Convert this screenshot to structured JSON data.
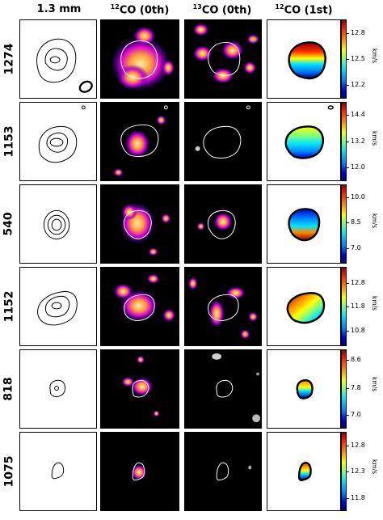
{
  "columns": {
    "continuum": "1.3 mm",
    "co12_zeroth": {
      "sup": "12",
      "text": "CO (0th)"
    },
    "co13_zeroth": {
      "sup": "13",
      "text": "CO (0th)"
    },
    "co12_first": {
      "sup": "12",
      "text": "CO (1st)"
    }
  },
  "rows": [
    {
      "id": "1274",
      "ticks": [
        "12.8",
        "12.5",
        "12.2"
      ],
      "unit": "km/s"
    },
    {
      "id": "1153",
      "ticks": [
        "14.4",
        "13.2",
        "12.0"
      ],
      "unit": "km/s"
    },
    {
      "id": "540",
      "ticks": [
        "10.0",
        "8.5",
        "7.0"
      ],
      "unit": "km/s"
    },
    {
      "id": "1152",
      "ticks": [
        "12.8",
        "11.8",
        "10.8"
      ],
      "unit": "km/s"
    },
    {
      "id": "818",
      "ticks": [
        "8.6",
        "7.8",
        "7.0"
      ],
      "unit": "km/s"
    },
    {
      "id": "1075",
      "ticks": [
        "12.8",
        "12.3",
        "11.8"
      ],
      "unit": "km/s"
    }
  ],
  "colors": {
    "panel_background": "#000000",
    "contour_white": "#ffffff",
    "contour_black": "#000000",
    "emission_colormap": [
      "#000000",
      "#2b00a8",
      "#7a00ff",
      "#d400d4",
      "#ff3c7a",
      "#ff9a3c",
      "#fff0a0"
    ],
    "velocity_colormap": [
      "#00008b",
      "#0080ff",
      "#00e5ff",
      "#7fff7f",
      "#ffff00",
      "#ff8c00",
      "#ff2a00",
      "#8b0000"
    ]
  }
}
